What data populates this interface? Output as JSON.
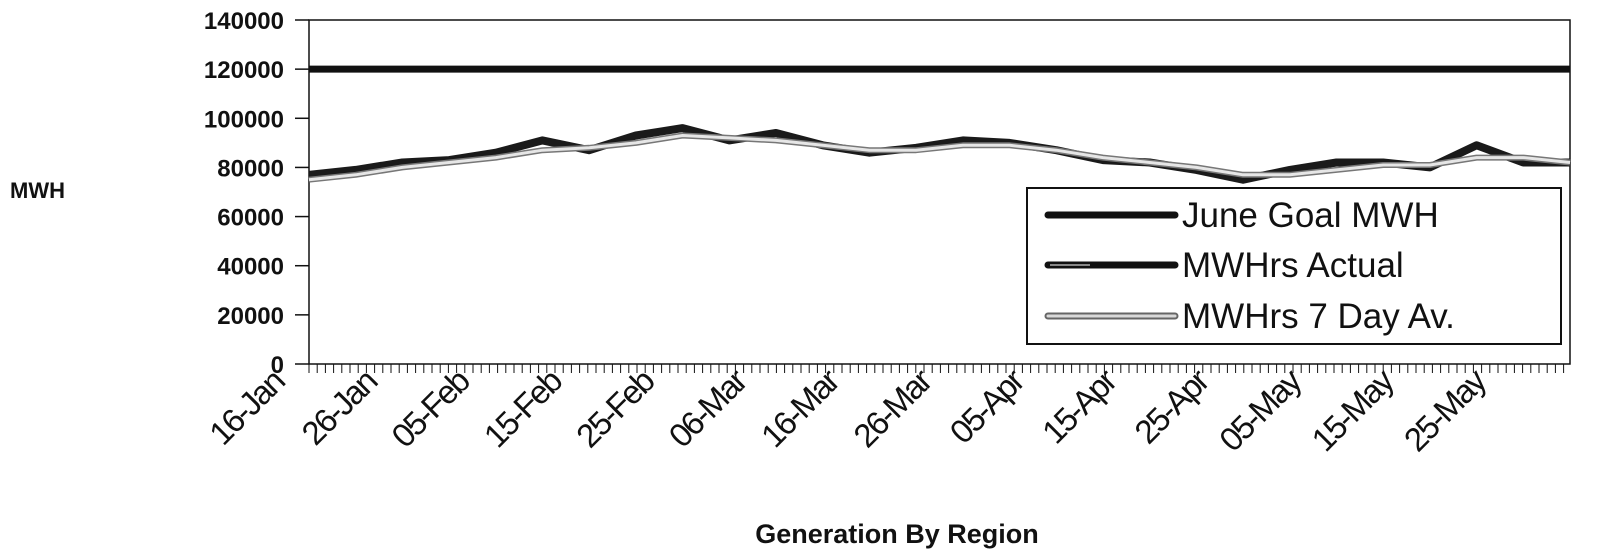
{
  "chart_data": {
    "type": "line",
    "title": "",
    "xlabel": "Generation By Region",
    "ylabel": "MWH",
    "ylim": [
      0,
      140000
    ],
    "yticks": [
      "140000",
      "120000",
      "100000",
      "80000",
      "60000",
      "40000",
      "20000",
      "0"
    ],
    "xtick_labels": [
      "16-Jan",
      "26-Jan",
      "05-Feb",
      "15-Feb",
      "25-Feb",
      "06-Mar",
      "16-Mar",
      "26-Mar",
      "05-Apr",
      "15-Apr",
      "25-Apr",
      "05-May",
      "15-May",
      "25-May"
    ],
    "x": [
      "16-Jan",
      "21-Jan",
      "26-Jan",
      "31-Jan",
      "05-Feb",
      "10-Feb",
      "15-Feb",
      "20-Feb",
      "25-Feb",
      "01-Mar",
      "06-Mar",
      "11-Mar",
      "16-Mar",
      "21-Mar",
      "26-Mar",
      "31-Mar",
      "05-Apr",
      "10-Apr",
      "15-Apr",
      "20-Apr",
      "25-Apr",
      "30-Apr",
      "05-May",
      "10-May",
      "15-May",
      "20-May",
      "25-May",
      "30-May"
    ],
    "series": [
      {
        "name": "June Goal MWH",
        "color": "#111111",
        "values": [
          120000,
          120000,
          120000,
          120000,
          120000,
          120000,
          120000,
          120000,
          120000,
          120000,
          120000,
          120000,
          120000,
          120000,
          120000,
          120000,
          120000,
          120000,
          120000,
          120000,
          120000,
          120000,
          120000,
          120000,
          120000,
          120000,
          120000,
          120000
        ]
      },
      {
        "name": "MWHrs Actual",
        "color": "#1a1a1a",
        "values": [
          77000,
          79000,
          82000,
          83000,
          86000,
          91000,
          87000,
          93000,
          96000,
          91000,
          94000,
          89000,
          86000,
          88000,
          91000,
          90000,
          87000,
          83000,
          82000,
          79000,
          75000,
          79000,
          82000,
          82000,
          80000,
          89000,
          82000,
          82000
        ]
      },
      {
        "name": "MWHrs 7 Day Av.",
        "color": "#a8a8a8",
        "values": [
          75000,
          77000,
          80000,
          82000,
          84000,
          87000,
          88000,
          90000,
          93000,
          92000,
          91000,
          89000,
          87000,
          87000,
          89000,
          89000,
          87000,
          84000,
          82000,
          80000,
          77000,
          77000,
          79000,
          81000,
          81000,
          84000,
          84000,
          82000
        ]
      }
    ],
    "grid": false,
    "legend_position": "lower-right"
  }
}
